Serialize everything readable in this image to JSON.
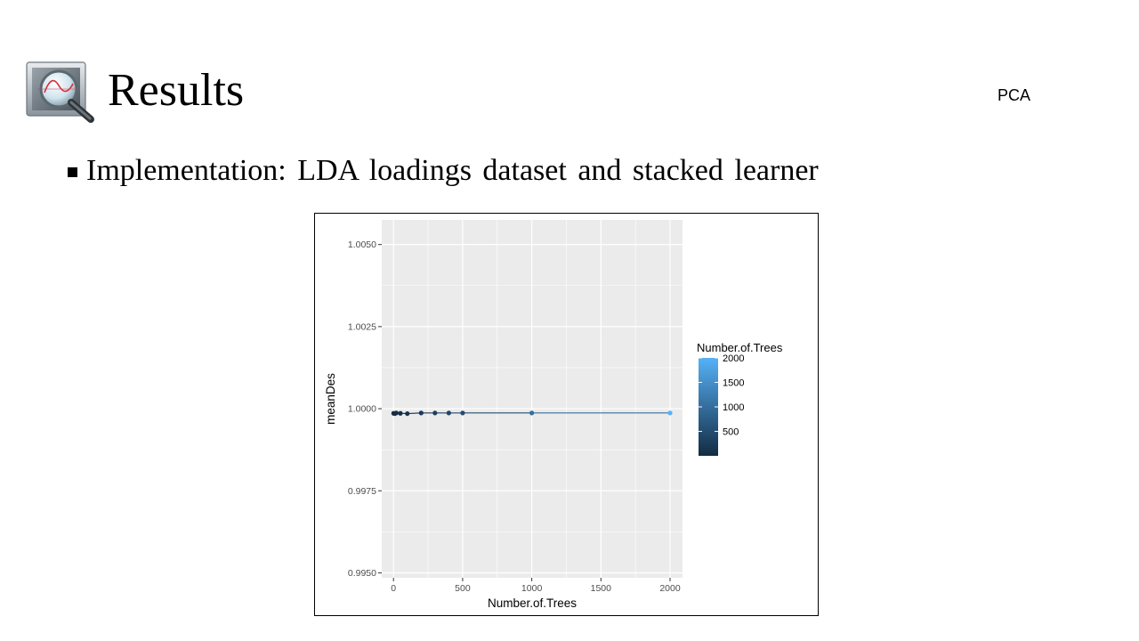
{
  "slide": {
    "title": "Results",
    "tag": "PCA",
    "icon": "magnifier-monitor-icon",
    "bullet": "Implementation: LDA loadings dataset and stacked learner"
  },
  "chart_data": {
    "type": "line",
    "xlabel": "Number.of.Trees",
    "ylabel": "meanDes",
    "xlim": [
      -85,
      2090
    ],
    "ylim": [
      0.99485,
      1.00575
    ],
    "x_ticks": [
      0,
      500,
      1000,
      1500,
      2000
    ],
    "x_tick_labels": [
      "0",
      "500",
      "1000",
      "1500",
      "2000"
    ],
    "y_ticks": [
      0.995,
      0.9975,
      1.0,
      1.0025,
      1.005
    ],
    "y_tick_labels": [
      "0.9950",
      "0.9975",
      "1.0000",
      "1.0025",
      "1.0050"
    ],
    "grid": true,
    "panel_background": "#ebebeb",
    "points": [
      {
        "x": 1,
        "y": 0.99986
      },
      {
        "x": 10,
        "y": 0.99985
      },
      {
        "x": 20,
        "y": 0.99987
      },
      {
        "x": 50,
        "y": 0.99986
      },
      {
        "x": 100,
        "y": 0.99985
      },
      {
        "x": 200,
        "y": 0.99987
      },
      {
        "x": 300,
        "y": 0.99987
      },
      {
        "x": 400,
        "y": 0.99987
      },
      {
        "x": 500,
        "y": 0.99987
      },
      {
        "x": 1000,
        "y": 0.99987
      },
      {
        "x": 2000,
        "y": 0.99987
      }
    ],
    "legend": {
      "title": "Number.of.Trees",
      "position": "right",
      "type": "colorbar",
      "range": [
        1,
        2000
      ],
      "breaks": [
        500,
        1000,
        1500,
        2000
      ],
      "break_labels": [
        "500",
        "1000",
        "1500",
        "2000"
      ],
      "color_low": "#132b43",
      "color_high": "#56b1f7"
    }
  }
}
